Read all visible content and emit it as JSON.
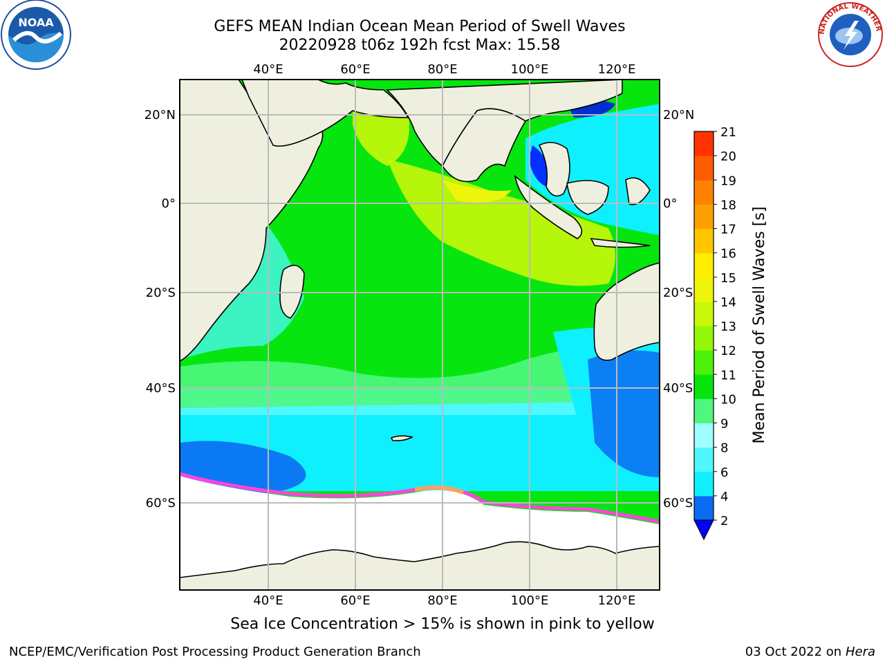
{
  "title": {
    "line1": "GEFS MEAN Indian Ocean Mean Period of Swell Waves",
    "line2": "20220928 t06z 192h fcst   Max: 15.58"
  },
  "map": {
    "lon_labels": [
      "40°E",
      "60°E",
      "80°E",
      "100°E",
      "120°E"
    ],
    "lat_labels": [
      "20°N",
      "0°",
      "20°S",
      "40°S",
      "60°S"
    ],
    "land_color": "#efefdf",
    "ice_color": "#ffffff",
    "grid_color": "#bbbbbb"
  },
  "colorbar": {
    "label": "Mean Period of Swell Waves [s]",
    "ticks": [
      "2",
      "4",
      "6",
      "8",
      "9",
      "10",
      "11",
      "12",
      "13",
      "14",
      "15",
      "16",
      "17",
      "18",
      "19",
      "20",
      "21"
    ],
    "colors": [
      "#0a6cf2",
      "#0ff0ff",
      "#4ff7ff",
      "#9ffffe",
      "#4ff77f",
      "#07e50f",
      "#4ef10c",
      "#96f60a",
      "#c9f70a",
      "#edf60a",
      "#ffee00",
      "#ffc600",
      "#ffa000",
      "#ff8100",
      "#ff5c00",
      "#ff3300"
    ],
    "under_color": "#0000ff"
  },
  "caption": "Sea Ice Concentration > 15% is shown in pink to yellow",
  "footer": {
    "left": "NCEP/EMC/Verification Post Processing Product Generation Branch",
    "right_date": "03 Oct 2022 on ",
    "right_host": "Hera"
  },
  "logos": {
    "noaa_text": "NOAA",
    "nws_text": "NATIONAL WEATHER SERVICE"
  }
}
